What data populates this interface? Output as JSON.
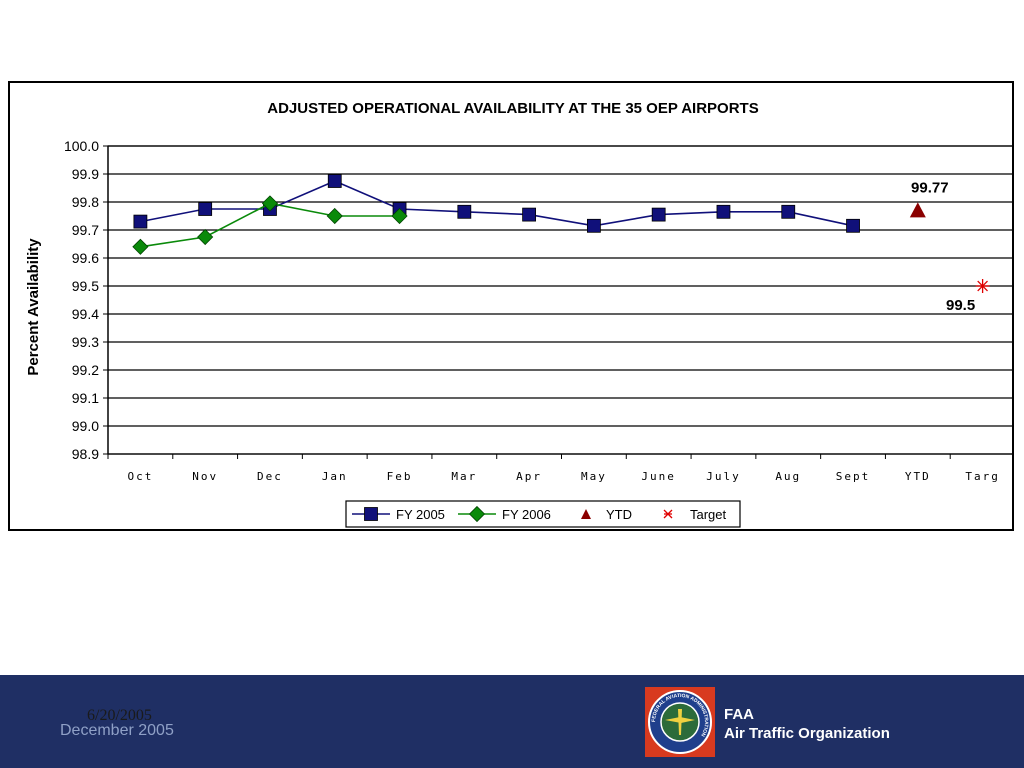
{
  "chart_data": {
    "type": "line",
    "title": "ADJUSTED OPERATIONAL AVAILABILITY AT THE 35 OEP AIRPORTS",
    "ylabel": "Percent Availability",
    "xlabel": "",
    "ylim": [
      98.9,
      100.0
    ],
    "yticks": [
      "98.9",
      "99.0",
      "99.1",
      "99.2",
      "99.3",
      "99.4",
      "99.5",
      "99.6",
      "99.7",
      "99.8",
      "99.9",
      "100.0"
    ],
    "categories": [
      "Oct",
      "Nov",
      "Dec",
      "Jan",
      "Feb",
      "Mar",
      "Apr",
      "May",
      "June",
      "July",
      "Aug",
      "Sept",
      "YTD",
      "Targ"
    ],
    "grid": true,
    "legend_position": "bottom",
    "series": [
      {
        "name": "FY 2005",
        "color": "#10107a",
        "marker": "square",
        "values": [
          99.73,
          99.775,
          99.775,
          99.875,
          99.775,
          99.765,
          99.755,
          99.715,
          99.755,
          99.765,
          99.765,
          99.715,
          null,
          null
        ]
      },
      {
        "name": "FY 2006",
        "color": "#0a8a0a",
        "marker": "diamond",
        "values": [
          99.64,
          99.675,
          99.795,
          99.75,
          99.75,
          null,
          null,
          null,
          null,
          null,
          null,
          null,
          null,
          null
        ]
      },
      {
        "name": "YTD",
        "color": "#8b0000",
        "marker": "triangle",
        "values": [
          null,
          null,
          null,
          null,
          null,
          null,
          null,
          null,
          null,
          null,
          null,
          null,
          99.77,
          null
        ]
      },
      {
        "name": "Target",
        "color": "#e00000",
        "marker": "star",
        "values": [
          null,
          null,
          null,
          null,
          null,
          null,
          null,
          null,
          null,
          null,
          null,
          null,
          null,
          99.5
        ]
      }
    ],
    "annotations": [
      {
        "text": "99.77",
        "category": "YTD",
        "value": 99.77
      },
      {
        "text": "99.5",
        "category": "Targ",
        "value": 99.5
      }
    ]
  },
  "footer": {
    "date_overlay": "6/20/2005",
    "date": "December 2005",
    "org_line1": "FAA",
    "org_line2": "Air Traffic Organization",
    "logo_ring_text": "FEDERAL AVIATION ADMINISTRATION"
  },
  "colors": {
    "footer_bg": "#1f2f64",
    "logo_bg": "#d83a1f"
  }
}
